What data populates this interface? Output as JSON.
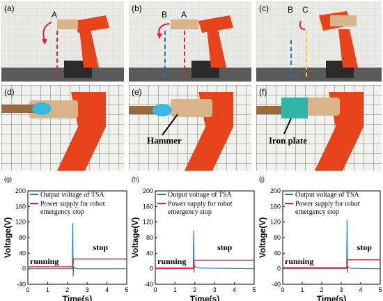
{
  "photos": {
    "a": {
      "letter": "(a)",
      "marks": [
        "A"
      ]
    },
    "b": {
      "letter": "(b)",
      "marks": [
        "B",
        "A"
      ]
    },
    "c": {
      "letter": "(c)",
      "marks": [
        "B",
        "C"
      ]
    },
    "d": {
      "letter": "(d)"
    },
    "e": {
      "letter": "(e)",
      "label": "Hammer"
    },
    "f": {
      "letter": "(f)",
      "label": "Iron plate"
    }
  },
  "colors": {
    "robot": "#e8441c",
    "tsa": "#1f77d4",
    "power": "#e8202a",
    "glove": "#3bb8e0"
  },
  "chart_data": [
    {
      "panel": "(g)",
      "type": "line",
      "xlabel": "Time(s)",
      "ylabel": "Voltage(V)",
      "xlim": [
        0,
        5
      ],
      "ylim": [
        -40,
        200
      ],
      "xticks": [
        "0",
        "1",
        "2",
        "3",
        "4",
        "5"
      ],
      "yticks": [
        "-40",
        "0",
        "40",
        "80",
        "120",
        "160",
        "200"
      ],
      "legend": [
        "Output voltage of TSA",
        "Power supply for robot",
        "emergency stop"
      ],
      "annotations": [
        "running",
        "stop"
      ],
      "series": [
        {
          "name": "Output voltage of TSA",
          "color": "#1f77d4",
          "x": [
            0,
            2.25,
            2.27,
            2.29,
            2.31,
            2.35,
            2.45,
            5
          ],
          "y": [
            0,
            0,
            117,
            -20,
            6,
            2,
            0,
            0
          ]
        },
        {
          "name": "Power supply for robot emergency stop",
          "color": "#e8202a",
          "x": [
            0,
            2.28,
            2.3,
            5
          ],
          "y": [
            5,
            5,
            25,
            25
          ]
        }
      ]
    },
    {
      "panel": "(h)",
      "type": "line",
      "xlabel": "Time(s)",
      "ylabel": "Voltage(V)",
      "xlim": [
        0,
        5
      ],
      "ylim": [
        -40,
        200
      ],
      "xticks": [
        "0",
        "1",
        "2",
        "3",
        "4",
        "5"
      ],
      "yticks": [
        "-40",
        "0",
        "40",
        "80",
        "120",
        "160",
        "200"
      ],
      "legend": [
        "Output voltage of TSA",
        "Power supply for robot",
        "emergency stop"
      ],
      "annotations": [
        "running",
        "stop"
      ],
      "series": [
        {
          "name": "Output voltage of TSA",
          "color": "#1f77d4",
          "x": [
            0,
            1.92,
            1.94,
            1.96,
            1.98,
            2.05,
            2.2,
            5
          ],
          "y": [
            0,
            0,
            98,
            -10,
            8,
            4,
            2,
            0
          ]
        },
        {
          "name": "Power supply for robot emergency stop",
          "color": "#e8202a",
          "x": [
            0,
            1.95,
            1.97,
            5
          ],
          "y": [
            2,
            2,
            22,
            22
          ]
        }
      ]
    },
    {
      "panel": "(j)",
      "type": "line",
      "xlabel": "Time(s)",
      "ylabel": "Voltage(V)",
      "xlim": [
        0,
        5
      ],
      "ylim": [
        -40,
        200
      ],
      "xticks": [
        "0",
        "1",
        "2",
        "3",
        "4",
        "5"
      ],
      "yticks": [
        "-40",
        "0",
        "40",
        "80",
        "120",
        "160",
        "200"
      ],
      "legend": [
        "Output voltage of TSA",
        "Power supply for robot",
        "emergency stop"
      ],
      "annotations": [
        "running",
        "stop"
      ],
      "series": [
        {
          "name": "Output voltage of TSA",
          "color": "#1f77d4",
          "x": [
            0,
            3.28,
            3.3,
            3.32,
            3.34,
            3.4,
            3.5,
            5
          ],
          "y": [
            0,
            0,
            125,
            -10,
            6,
            3,
            1,
            0
          ]
        },
        {
          "name": "Power supply for robot emergency stop",
          "color": "#e8202a",
          "x": [
            0,
            3.31,
            3.33,
            5
          ],
          "y": [
            3,
            3,
            23,
            23
          ]
        }
      ]
    }
  ]
}
